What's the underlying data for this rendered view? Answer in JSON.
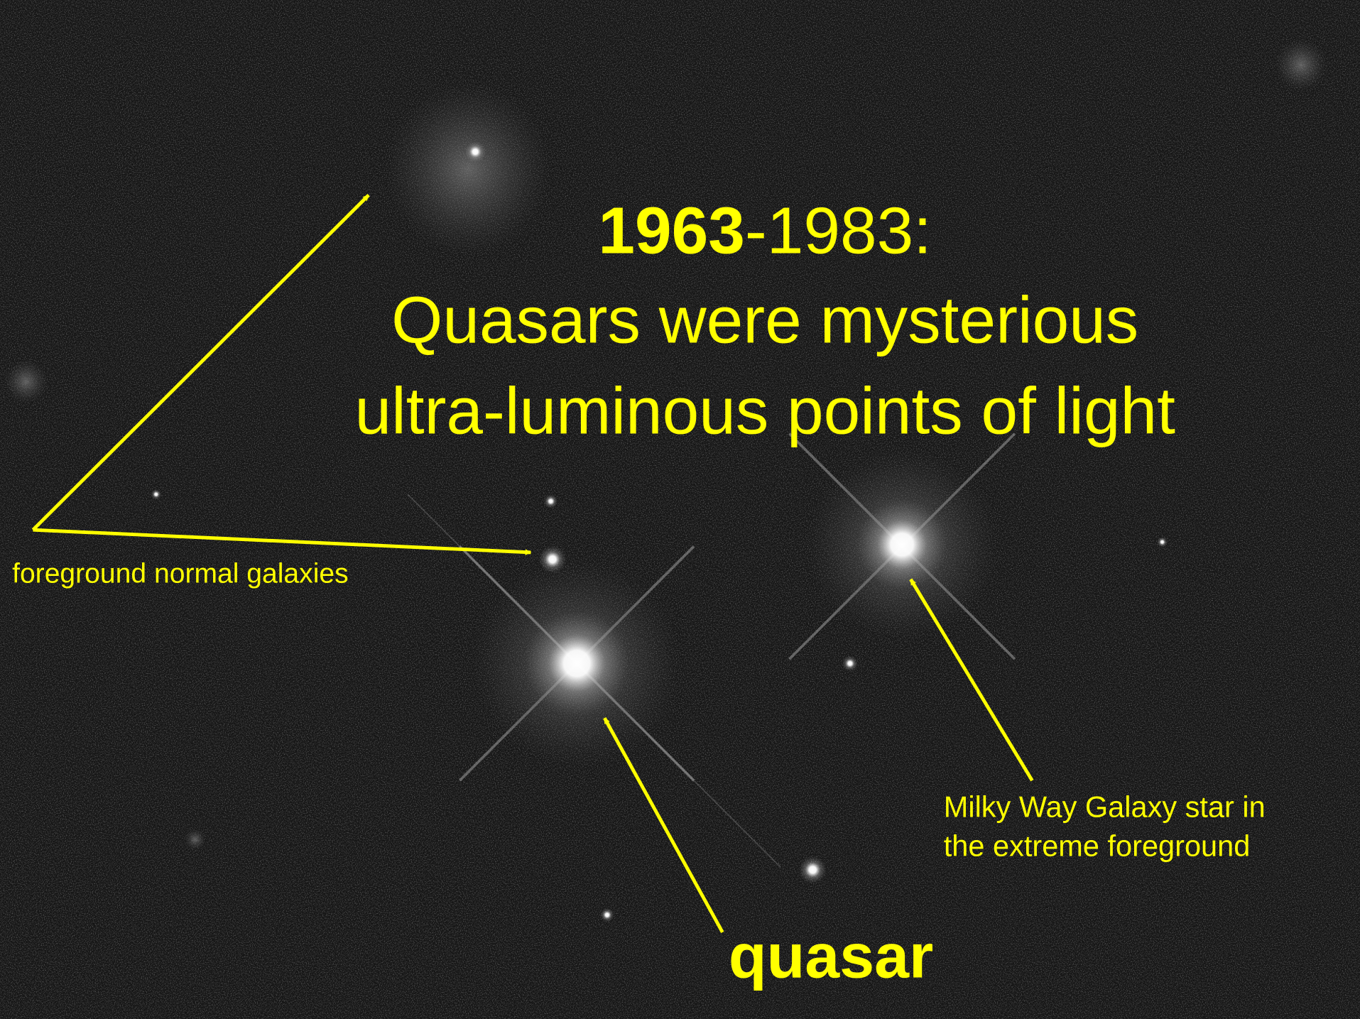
{
  "headline": {
    "year_start": "1963",
    "year_end": "-1983:",
    "lines": [
      "Quasars were mysterious",
      "ultra-luminous points of light"
    ]
  },
  "annotations": {
    "galaxies": "foreground normal galaxies",
    "star": [
      "Milky Way Galaxy star in",
      "the extreme foreground"
    ],
    "quasar": "quasar"
  }
}
